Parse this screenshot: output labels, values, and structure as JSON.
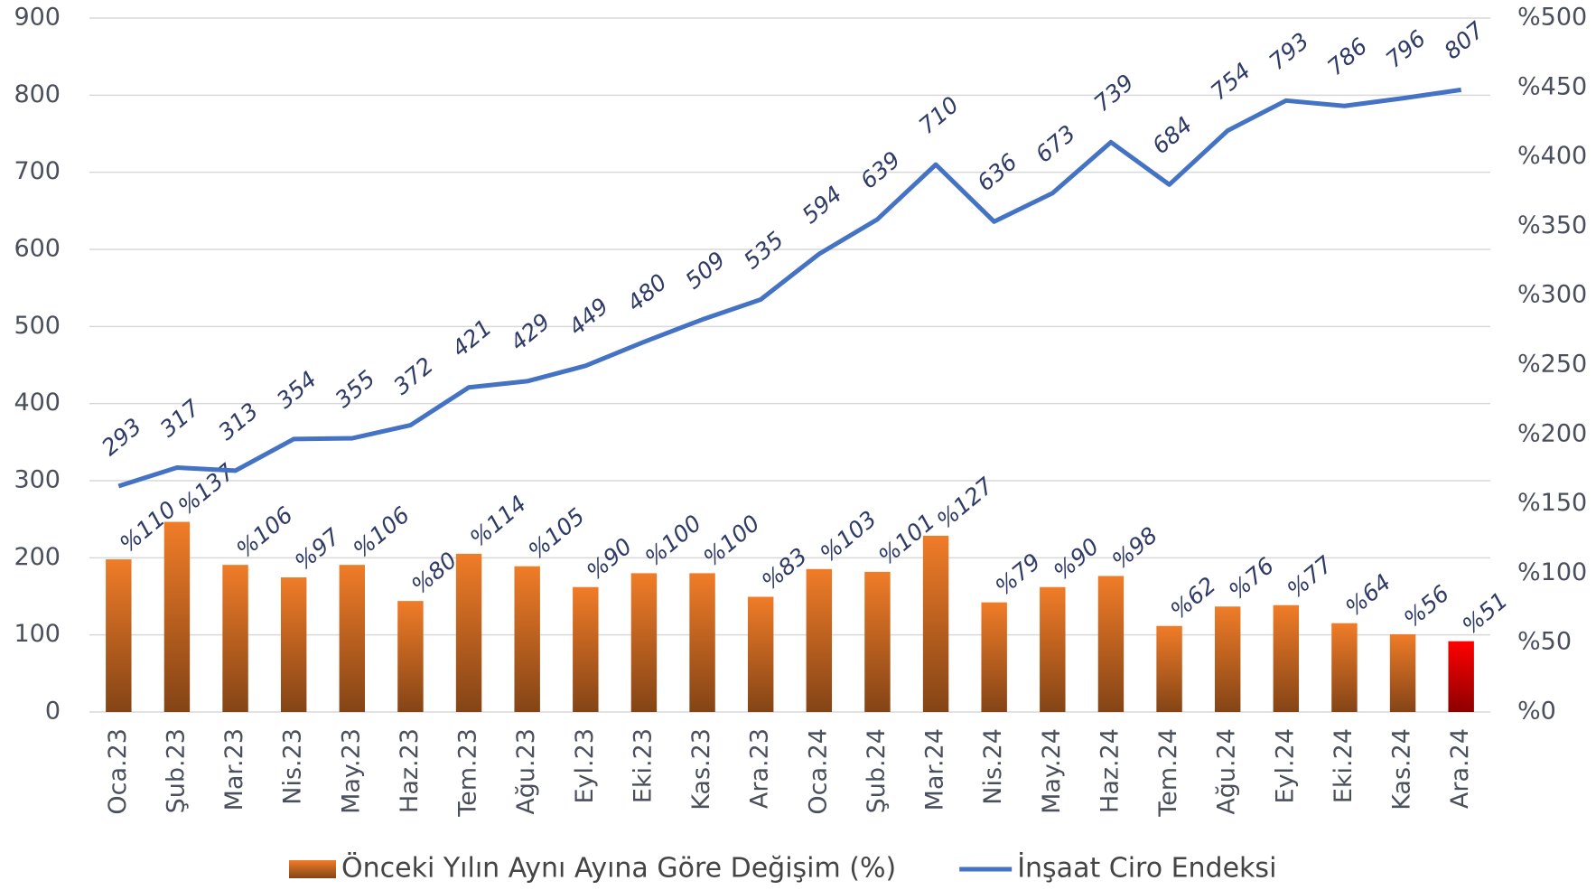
{
  "chart_data": {
    "type": "combo",
    "categories": [
      "Oca.23",
      "Şub.23",
      "Mar.23",
      "Nis.23",
      "May.23",
      "Haz.23",
      "Tem.23",
      "Ağu.23",
      "Eyl.23",
      "Eki.23",
      "Kas.23",
      "Ara.23",
      "Oca.24",
      "Şub.24",
      "Mar.24",
      "Nis.24",
      "May.24",
      "Haz.24",
      "Tem.24",
      "Ağu.24",
      "Eyl.24",
      "Eki.24",
      "Kas.24",
      "Ara.24"
    ],
    "series": [
      {
        "name": "Önceki Yılın Aynı Ayına Göre Değişim (%)",
        "type": "bar",
        "axis": "y2",
        "color": "#f07c28",
        "colors": [
          "#f07c28",
          "#f07c28",
          "#f07c28",
          "#f07c28",
          "#f07c28",
          "#f07c28",
          "#f07c28",
          "#f07c28",
          "#f07c28",
          "#f07c28",
          "#f07c28",
          "#f07c28",
          "#f07c28",
          "#f07c28",
          "#f07c28",
          "#f07c28",
          "#f07c28",
          "#f07c28",
          "#f07c28",
          "#f07c28",
          "#f07c28",
          "#f07c28",
          "#f07c28",
          "#ff0000"
        ],
        "values": [
          110,
          137,
          106,
          97,
          106,
          80,
          114,
          105,
          90,
          100,
          100,
          83,
          103,
          101,
          127,
          79,
          90,
          98,
          62,
          76,
          77,
          64,
          56,
          51
        ],
        "value_labels": [
          "%110",
          "%137",
          "%106",
          "%97",
          "%106",
          "%80",
          "%114",
          "%105",
          "%90",
          "%100",
          "%100",
          "%83",
          "%103",
          "%101",
          "%127",
          "%79",
          "%90",
          "%98",
          "%62",
          "%76",
          "%77",
          "%64",
          "%56",
          "%51"
        ]
      },
      {
        "name": "İnşaat Ciro Endeksi",
        "type": "line",
        "color": "#4472c4",
        "values": [
          293,
          317,
          313,
          354,
          355,
          372,
          421,
          429,
          449,
          480,
          509,
          535,
          594,
          639,
          710,
          636,
          673,
          739,
          684,
          754,
          793,
          786,
          796,
          807
        ]
      }
    ],
    "ylim": [
      0,
      900
    ],
    "yticks": [
      0,
      100,
      200,
      300,
      400,
      500,
      600,
      700,
      800,
      900
    ],
    "y2lim": [
      0,
      500
    ],
    "y2ticks": [
      {
        "value": 0,
        "label": "%0"
      },
      {
        "value": 50,
        "label": "%50"
      },
      {
        "value": 100,
        "label": "%100"
      },
      {
        "value": 150,
        "label": "%150"
      },
      {
        "value": 200,
        "label": "%200"
      },
      {
        "value": 250,
        "label": "%250"
      },
      {
        "value": 300,
        "label": "%300"
      },
      {
        "value": 350,
        "label": "%350"
      },
      {
        "value": 400,
        "label": "%400"
      },
      {
        "value": 450,
        "label": "%450"
      },
      {
        "value": 500,
        "label": "%500"
      }
    ],
    "grid": true,
    "legend": "bottom"
  }
}
